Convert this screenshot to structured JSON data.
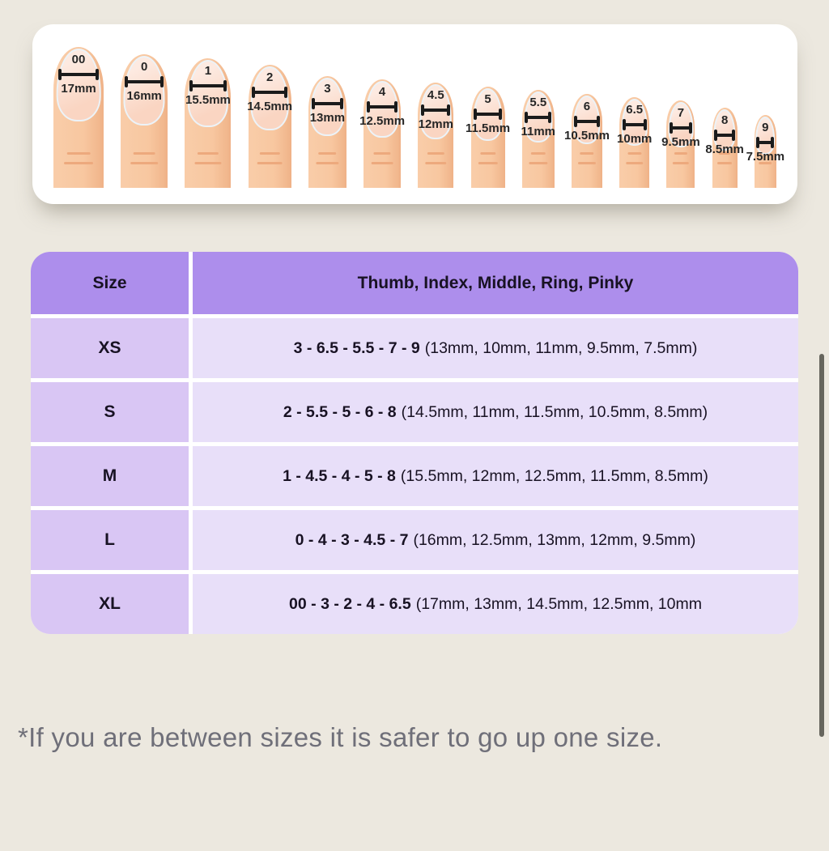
{
  "colors": {
    "page_bg": "#ece8df",
    "card_bg": "#ffffff",
    "table_header_purple": "#ad8eec",
    "size_cell_purple": "#d9c6f4",
    "value_cell_purple": "#e8dff9",
    "skin": "#f8c7a0",
    "nail": "#fad5c2",
    "ruler_black": "#1b1b1b",
    "note_gray": "#6f6f79",
    "scrollbar_gray": "#67665e"
  },
  "size_guide": {
    "fingers": [
      {
        "label": "00",
        "mm": "17mm"
      },
      {
        "label": "0",
        "mm": "16mm"
      },
      {
        "label": "1",
        "mm": "15.5mm"
      },
      {
        "label": "2",
        "mm": "14.5mm"
      },
      {
        "label": "3",
        "mm": "13mm"
      },
      {
        "label": "4",
        "mm": "12.5mm"
      },
      {
        "label": "4.5",
        "mm": "12mm"
      },
      {
        "label": "5",
        "mm": "11.5mm"
      },
      {
        "label": "5.5",
        "mm": "11mm"
      },
      {
        "label": "6",
        "mm": "10.5mm"
      },
      {
        "label": "6.5",
        "mm": "10mm"
      },
      {
        "label": "7",
        "mm": "9.5mm"
      },
      {
        "label": "8",
        "mm": "8.5mm"
      },
      {
        "label": "9",
        "mm": "7.5mm"
      }
    ]
  },
  "table": {
    "headers": {
      "size": "Size",
      "fingers": "Thumb, Index, Middle, Ring, Pinky"
    },
    "rows": [
      {
        "size": "XS",
        "combo": "3 - 6.5 - 5.5 - 7 - 9",
        "mm": "(13mm, 10mm, 11mm, 9.5mm, 7.5mm)"
      },
      {
        "size": "S",
        "combo": "2 - 5.5 - 5 - 6 - 8",
        "mm": "(14.5mm, 11mm, 11.5mm, 10.5mm, 8.5mm)"
      },
      {
        "size": "M",
        "combo": "1 - 4.5 - 4 - 5 - 8",
        "mm": "(15.5mm, 12mm, 12.5mm, 11.5mm, 8.5mm)"
      },
      {
        "size": "L",
        "combo": "0 - 4 - 3 - 4.5 - 7",
        "mm": "(16mm, 12.5mm, 13mm, 12mm, 9.5mm)"
      },
      {
        "size": "XL",
        "combo": "00 - 3 - 2 - 4 - 6.5",
        "mm": "(17mm, 13mm, 14.5mm, 12.5mm, 10mm"
      }
    ]
  },
  "note": "*If you are between sizes it is safer to go up one size."
}
